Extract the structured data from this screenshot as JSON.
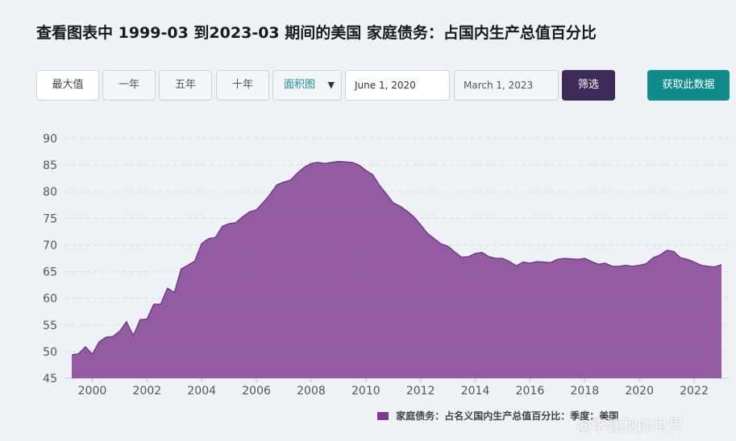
{
  "title": "查看图表中 1999-03 到2023-03 期间的美国 家庭债务：占国内生产总值百分比",
  "toolbar": {
    "max": "最大值",
    "one_year": "一年",
    "five_year": "五年",
    "ten_year": "十年",
    "chart_type": "面积图",
    "start_date": "June 1, 2020",
    "end_date": "March 1, 2023",
    "filter": "筛选",
    "get_data": "获取此数据"
  },
  "watermark": "@李建秋的世界",
  "colors": {
    "area": "#8b4f9a",
    "line": "#6e2f85",
    "grid": "#d4dde6"
  },
  "chart_data": {
    "type": "area",
    "ylim": [
      45,
      90
    ],
    "yticks": [
      45,
      50,
      55,
      60,
      65,
      70,
      75,
      80,
      85,
      90
    ],
    "xticks": [
      "2000",
      "2002",
      "2004",
      "2006",
      "2008",
      "2010",
      "2012",
      "2014",
      "2016",
      "2018",
      "2020",
      "2022"
    ],
    "grid": "horizontal dashed",
    "legend": "家庭债务：占名义国内生产总值百分比：季度：美国",
    "legend_position": "bottom-right",
    "series": [
      {
        "x": [
          1999.25,
          1999.5,
          1999.75,
          2000.0,
          2000.25,
          2000.5,
          2000.75,
          2001.0,
          2001.25,
          2001.5,
          2001.75,
          2002.0,
          2002.25,
          2002.5,
          2002.75,
          2003.0,
          2003.25,
          2003.5,
          2003.75,
          2004.0,
          2004.25,
          2004.5,
          2004.75,
          2005.0,
          2005.25,
          2005.5,
          2005.75,
          2006.0,
          2006.25,
          2006.5,
          2006.75,
          2007.0,
          2007.25,
          2007.5,
          2007.75,
          2008.0,
          2008.25,
          2008.5,
          2008.75,
          2009.0,
          2009.25,
          2009.5,
          2009.75,
          2010.0,
          2010.25,
          2010.5,
          2010.75,
          2011.0,
          2011.25,
          2011.5,
          2011.75,
          2012.0,
          2012.25,
          2012.5,
          2012.75,
          2013.0,
          2013.25,
          2013.5,
          2013.75,
          2014.0,
          2014.25,
          2014.5,
          2014.75,
          2015.0,
          2015.25,
          2015.5,
          2015.75,
          2016.0,
          2016.25,
          2016.5,
          2016.75,
          2017.0,
          2017.25,
          2017.5,
          2017.75,
          2018.0,
          2018.25,
          2018.5,
          2018.75,
          2019.0,
          2019.25,
          2019.5,
          2019.75,
          2020.0,
          2020.25,
          2020.5,
          2020.75,
          2021.0,
          2021.25,
          2021.5,
          2021.75,
          2022.0,
          2022.25,
          2022.5,
          2022.75,
          2023.0
        ],
        "values": [
          49.4,
          49.6,
          50.9,
          49.5,
          51.8,
          52.7,
          52.8,
          53.8,
          55.6,
          53.0,
          56.0,
          56.1,
          58.9,
          58.9,
          61.9,
          61.1,
          65.5,
          66.2,
          67.0,
          70.3,
          71.2,
          71.4,
          73.5,
          74.0,
          74.2,
          75.3,
          76.2,
          76.6,
          78.0,
          79.5,
          81.3,
          81.8,
          82.2,
          83.5,
          84.6,
          85.3,
          85.5,
          85.3,
          85.5,
          85.7,
          85.6,
          85.5,
          85.0,
          84.0,
          83.2,
          81.2,
          79.6,
          77.9,
          77.3,
          76.4,
          75.3,
          73.8,
          72.2,
          71.2,
          70.2,
          69.8,
          68.7,
          67.7,
          67.8,
          68.4,
          68.6,
          67.8,
          67.5,
          67.5,
          66.9,
          66.1,
          66.8,
          66.6,
          66.9,
          66.8,
          66.7,
          67.3,
          67.5,
          67.4,
          67.3,
          67.5,
          66.9,
          66.4,
          66.6,
          66.0,
          66.0,
          66.2,
          66.0,
          66.2,
          66.5,
          67.6,
          68.1,
          69.0,
          68.8,
          67.6,
          67.3,
          66.8,
          66.2,
          66.0,
          65.9,
          66.3
        ]
      }
    ]
  }
}
